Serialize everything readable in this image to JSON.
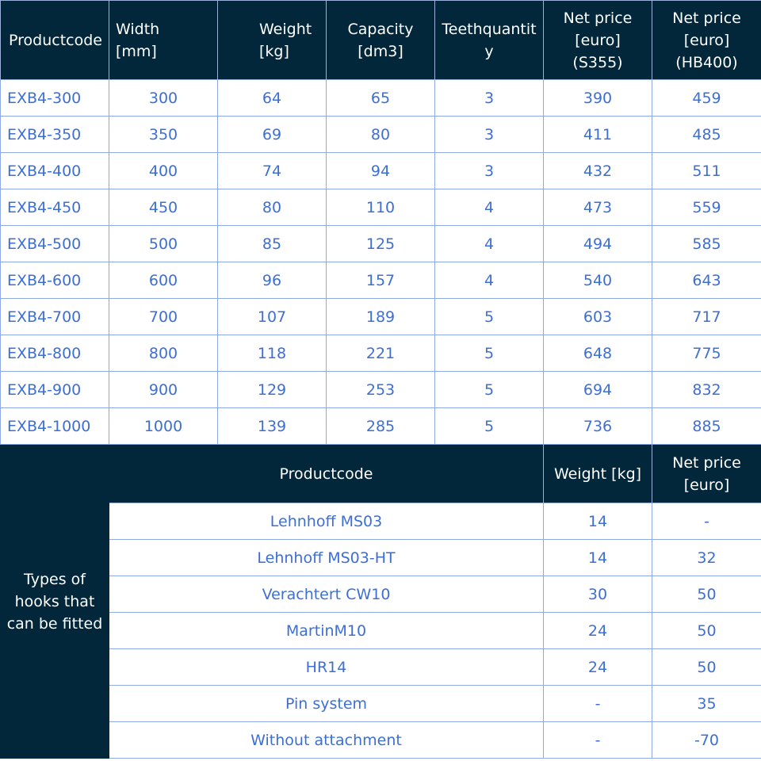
{
  "products": {
    "headers": [
      "Productcode",
      "Width\n[mm]",
      "Weight\n[kg]",
      "Capacity\n[dm3]",
      "Teethquantit\ny",
      "Net price\n[euro]\n(S355)",
      "Net price\n[euro]\n(HB400)"
    ],
    "rows": [
      [
        "EXB4-300",
        "300",
        "64",
        "65",
        "3",
        "390",
        "459"
      ],
      [
        "EXB4-350",
        "350",
        "69",
        "80",
        "3",
        "411",
        "485"
      ],
      [
        "EXB4-400",
        "400",
        "74",
        "94",
        "3",
        "432",
        "511"
      ],
      [
        "EXB4-450",
        "450",
        "80",
        "110",
        "4",
        "473",
        "559"
      ],
      [
        "EXB4-500",
        "500",
        "85",
        "125",
        "4",
        "494",
        "585"
      ],
      [
        "EXB4-600",
        "600",
        "96",
        "157",
        "4",
        "540",
        "643"
      ],
      [
        "EXB4-700",
        "700",
        "107",
        "189",
        "5",
        "603",
        "717"
      ],
      [
        "EXB4-800",
        "800",
        "118",
        "221",
        "5",
        "648",
        "775"
      ],
      [
        "EXB4-900",
        "900",
        "129",
        "253",
        "5",
        "694",
        "832"
      ],
      [
        "EXB4-1000",
        "1000",
        "139",
        "285",
        "5",
        "736",
        "885"
      ]
    ]
  },
  "hooks": {
    "side_label": "Types of\nhooks that\ncan be fitted",
    "headers": [
      "Productcode",
      "Weight [kg]",
      "Net price\n[euro]"
    ],
    "rows": [
      [
        "Lehnhoff MS03",
        "14",
        "-"
      ],
      [
        "Lehnhoff MS03-HT",
        "14",
        "32"
      ],
      [
        "Verachtert CW10",
        "30",
        "50"
      ],
      [
        "MartinM10",
        "24",
        "50"
      ],
      [
        "HR14",
        "24",
        "50"
      ],
      [
        "Pin system",
        "-",
        "35"
      ],
      [
        "Without attachment",
        "-",
        "-70"
      ]
    ]
  },
  "colors": {
    "header_bg": "#02263a",
    "text_blue": "#3d6fd3",
    "border": "#8ea9e3"
  }
}
